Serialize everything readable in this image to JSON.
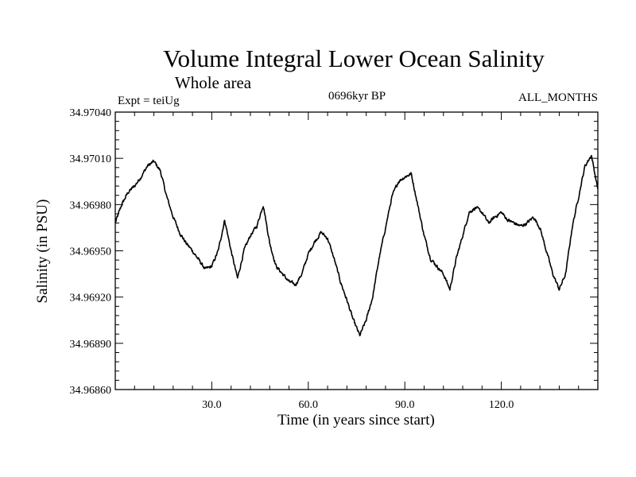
{
  "chart_data": {
    "type": "line",
    "title": "Volume Integral Lower Ocean Salinity",
    "subtitle": "Whole area",
    "experiment_label": "Expt = teiUg",
    "period_label": "0696kyr BP",
    "months_label": "ALL_MONTHS",
    "xlabel": "Time (in years since start)",
    "ylabel": "Salinity (in PSU)",
    "xlim": [
      0,
      150
    ],
    "ylim": [
      34.9686,
      34.9704
    ],
    "x_tick_values": [
      30,
      60,
      90,
      120
    ],
    "x_tick_labels": [
      "30.0",
      "60.0",
      "90.0",
      "120.0"
    ],
    "y_tick_values": [
      34.9686,
      34.9689,
      34.9692,
      34.9695,
      34.9698,
      34.9701,
      34.9704
    ],
    "y_tick_labels": [
      "34.96860",
      "34.96890",
      "34.96920",
      "34.96950",
      "34.96980",
      "34.97010",
      "34.97040"
    ],
    "grid": false,
    "series": [
      {
        "name": "Salinity",
        "color": "#000000",
        "noise_amplitude": 1.8e-05,
        "x": [
          0,
          2,
          4,
          6,
          8,
          10,
          12,
          14,
          16,
          18,
          20,
          22,
          24,
          26,
          28,
          30,
          32,
          34,
          36,
          38,
          40,
          42,
          44,
          46,
          48,
          50,
          52,
          54,
          56,
          58,
          60,
          62,
          64,
          66,
          68,
          70,
          72,
          74,
          76,
          78,
          80,
          82,
          84,
          86,
          88,
          90,
          92,
          94,
          96,
          98,
          100,
          102,
          104,
          106,
          108,
          110,
          112,
          114,
          116,
          118,
          120,
          122,
          124,
          126,
          128,
          130,
          132,
          134,
          136,
          138,
          140,
          142,
          144,
          146,
          148,
          150
        ],
        "values": [
          34.96968,
          34.9698,
          34.96988,
          34.96992,
          34.96998,
          34.97005,
          34.97008,
          34.97002,
          34.96985,
          34.96972,
          34.96962,
          34.96955,
          34.9695,
          34.96944,
          34.96938,
          34.9694,
          34.9695,
          34.9697,
          34.9695,
          34.96932,
          34.9695,
          34.9696,
          34.96966,
          34.9698,
          34.96955,
          34.9694,
          34.96935,
          34.9693,
          34.96928,
          34.96935,
          34.96948,
          34.96956,
          34.96962,
          34.96958,
          34.96945,
          34.9693,
          34.96918,
          34.96905,
          34.96895,
          34.96905,
          34.9692,
          34.96945,
          34.96965,
          34.96985,
          34.96995,
          34.96998,
          34.97,
          34.9698,
          34.9696,
          34.96945,
          34.9694,
          34.96935,
          34.96925,
          34.96945,
          34.9696,
          34.96975,
          34.96978,
          34.96975,
          34.96968,
          34.96972,
          34.96975,
          34.9697,
          34.96968,
          34.96966,
          34.96968,
          34.96972,
          34.96965,
          34.9695,
          34.96935,
          34.96925,
          34.96935,
          34.96965,
          34.96985,
          34.97005,
          34.97012,
          34.9699
        ]
      }
    ]
  }
}
